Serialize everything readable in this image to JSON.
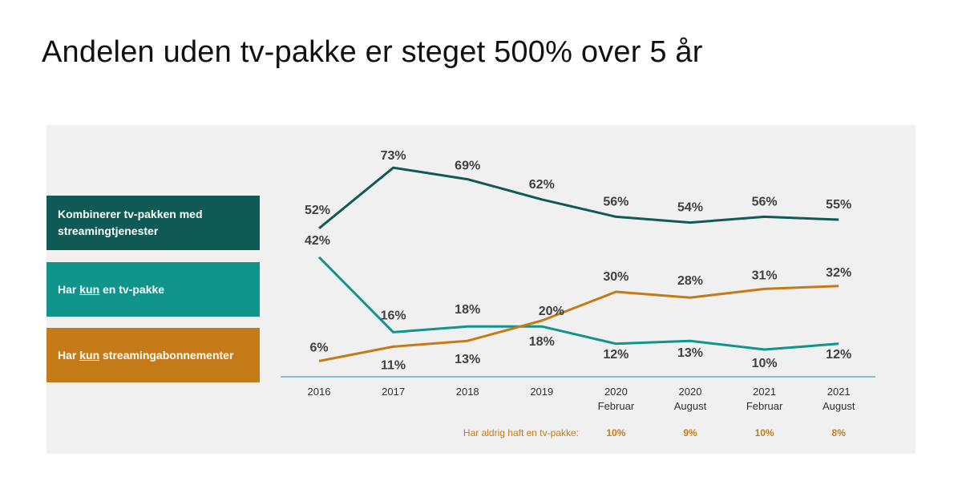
{
  "title": "Andelen uden tv-pakke er steget 500% over 5 år",
  "legend": [
    {
      "pre": "Kombinerer tv-pakken med streamingtjenester",
      "kun": "",
      "post": ""
    },
    {
      "pre": "Har ",
      "kun": "kun",
      "post": " en tv-pakke"
    },
    {
      "pre": "Har ",
      "kun": "kun",
      "post": " streamingabonnementer"
    }
  ],
  "chart_data": {
    "type": "line",
    "title": "",
    "xlabel": "",
    "ylabel": "",
    "categories": [
      [
        "2016"
      ],
      [
        "2017"
      ],
      [
        "2018"
      ],
      [
        "2019"
      ],
      [
        "2020",
        "Februar"
      ],
      [
        "2020",
        "August"
      ],
      [
        "2021",
        "Februar"
      ],
      [
        "2021",
        "August"
      ]
    ],
    "series": [
      {
        "name": "Kombinerer tv-pakken med streamingtjenester",
        "color": "#0f5a54",
        "values": [
          52,
          73,
          69,
          62,
          56,
          54,
          56,
          55
        ]
      },
      {
        "name": "Har kun en tv-pakke",
        "color": "#10948b",
        "values": [
          42,
          16,
          18,
          18,
          12,
          13,
          10,
          12
        ]
      },
      {
        "name": "Har kun streamingabonnementer",
        "color": "#c47b17",
        "values": [
          6,
          11,
          13,
          20,
          30,
          28,
          31,
          32
        ]
      }
    ],
    "value_labels": [
      [
        "52%",
        "73%",
        "69%",
        "62%",
        "56%",
        "54%",
        "56%",
        "55%"
      ],
      [
        "42%",
        "16%",
        "18%",
        "18%",
        "12%",
        "13%",
        "10%",
        "12%"
      ],
      [
        "6%",
        "11%",
        "13%",
        "20%",
        "30%",
        "28%",
        "31%",
        "32%"
      ]
    ],
    "legend_position": "left",
    "grid": false
  },
  "footnote": {
    "label": "Har aldrig haft en tv-pakke:",
    "values": [
      "10%",
      "9%",
      "10%",
      "8%"
    ],
    "color": "#c47b17"
  }
}
